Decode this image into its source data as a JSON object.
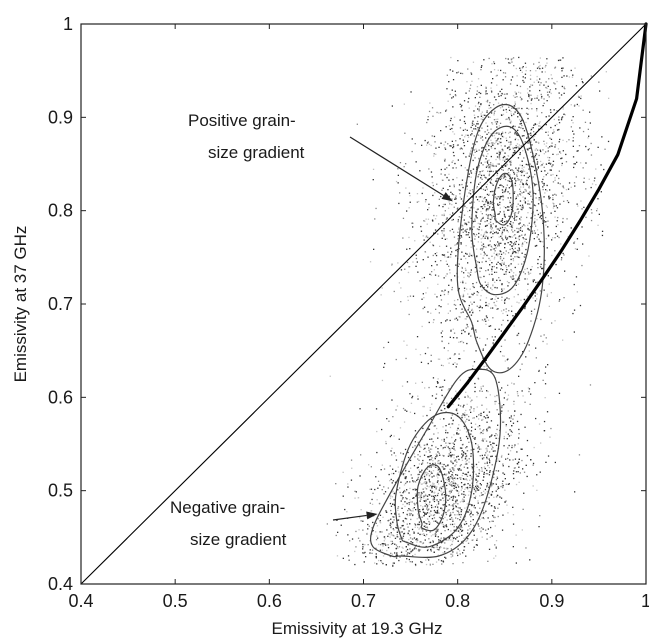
{
  "chart_data": {
    "type": "scatter",
    "xlabel": "Emissivity at 19.3 GHz",
    "ylabel": "Emissivity at 37 GHz",
    "xlim": [
      0.4,
      1.0
    ],
    "ylim": [
      0.4,
      1.0
    ],
    "xticks": [
      "0.4",
      "0.5",
      "0.6",
      "0.7",
      "0.8",
      "0.9",
      "1"
    ],
    "yticks": [
      "0.4",
      "0.5",
      "0.6",
      "0.7",
      "0.8",
      "0.9",
      "1"
    ],
    "grid": false,
    "legend": "none",
    "scatter_clusters": [
      {
        "center": [
          0.845,
          0.815
        ],
        "spread": [
          0.045,
          0.085
        ],
        "tilt": 0.35,
        "weight": 0.55
      },
      {
        "center": [
          0.78,
          0.49
        ],
        "spread": [
          0.045,
          0.05
        ],
        "tilt": 0.6,
        "weight": 0.45
      }
    ],
    "series": [
      {
        "style": "one-to-one line",
        "x": [
          0.4,
          1.0
        ],
        "y": [
          0.4,
          1.0
        ]
      },
      {
        "style": "model curve",
        "x": [
          0.79,
          0.81,
          0.83,
          0.85,
          0.87,
          0.89,
          0.91,
          0.93,
          0.95,
          0.97,
          0.99,
          1.0
        ],
        "y": [
          0.59,
          0.615,
          0.642,
          0.67,
          0.698,
          0.727,
          0.757,
          0.789,
          0.823,
          0.86,
          0.92,
          1.0
        ]
      }
    ],
    "contours": [
      {
        "level": "outer-upper",
        "x": [
          0.82,
          0.835,
          0.855,
          0.875,
          0.89,
          0.89,
          0.875,
          0.86,
          0.84,
          0.82,
          0.805,
          0.8,
          0.815
        ],
        "y": [
          0.66,
          0.63,
          0.63,
          0.66,
          0.72,
          0.8,
          0.88,
          0.91,
          0.91,
          0.88,
          0.8,
          0.72,
          0.68
        ]
      },
      {
        "level": "outer-lower",
        "x": [
          0.74,
          0.78,
          0.81,
          0.83,
          0.845,
          0.84,
          0.82,
          0.8,
          0.77,
          0.73,
          0.71,
          0.71,
          0.73
        ],
        "y": [
          0.43,
          0.43,
          0.45,
          0.49,
          0.56,
          0.62,
          0.63,
          0.62,
          0.57,
          0.5,
          0.46,
          0.44,
          0.43
        ]
      },
      {
        "level": "mid-upper",
        "x": [
          0.825,
          0.84,
          0.86,
          0.875,
          0.88,
          0.87,
          0.855,
          0.835,
          0.82,
          0.815,
          0.82
        ],
        "y": [
          0.72,
          0.71,
          0.72,
          0.76,
          0.82,
          0.87,
          0.89,
          0.88,
          0.84,
          0.78,
          0.74
        ]
      },
      {
        "level": "mid-lower",
        "x": [
          0.745,
          0.77,
          0.8,
          0.815,
          0.815,
          0.8,
          0.775,
          0.75,
          0.735,
          0.735,
          0.74
        ],
        "y": [
          0.445,
          0.44,
          0.46,
          0.5,
          0.55,
          0.58,
          0.58,
          0.55,
          0.5,
          0.47,
          0.45
        ]
      },
      {
        "level": "inner-upper",
        "x": [
          0.84,
          0.85,
          0.858,
          0.858,
          0.85,
          0.842,
          0.838,
          0.84
        ],
        "y": [
          0.79,
          0.785,
          0.8,
          0.83,
          0.84,
          0.83,
          0.81,
          0.795
        ]
      },
      {
        "level": "inner-lower",
        "x": [
          0.762,
          0.775,
          0.785,
          0.787,
          0.78,
          0.768,
          0.758,
          0.758,
          0.762
        ],
        "y": [
          0.46,
          0.458,
          0.475,
          0.5,
          0.525,
          0.525,
          0.505,
          0.48,
          0.465
        ]
      }
    ],
    "annotations": [
      {
        "text_lines": [
          "Positive grain-",
          "size gradient"
        ],
        "arrow_to": [
          0.795,
          0.81
        ]
      },
      {
        "text_lines": [
          "Negative grain-",
          "size gradient"
        ],
        "arrow_to": [
          0.715,
          0.475
        ]
      }
    ]
  }
}
